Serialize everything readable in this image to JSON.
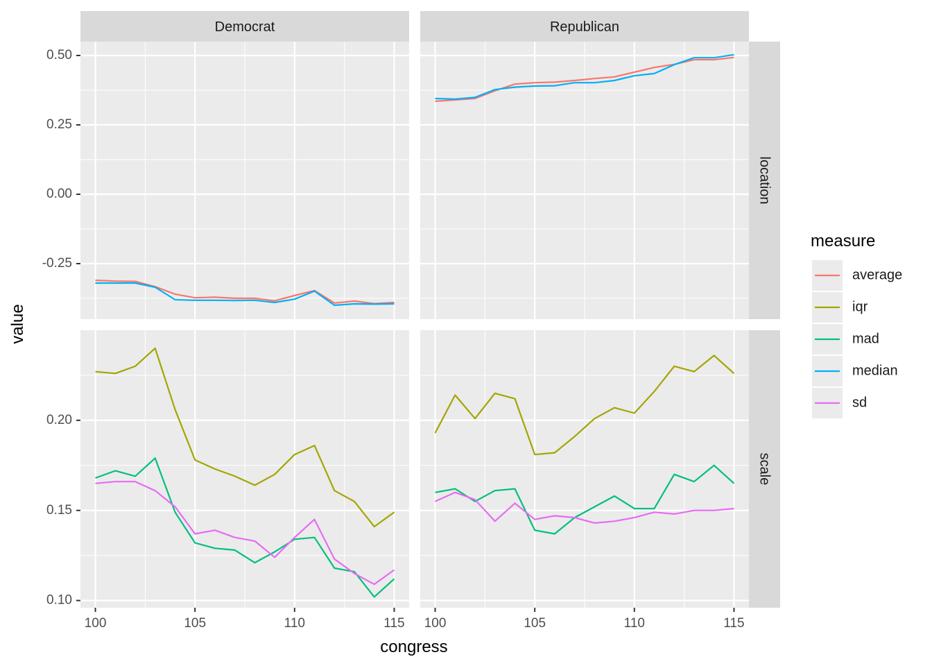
{
  "chart_data": {
    "type": "line",
    "facets": {
      "columns": [
        "Democrat",
        "Republican"
      ],
      "rows": [
        "location",
        "scale"
      ]
    },
    "xlabel": "congress",
    "ylabel": "value",
    "x": [
      100,
      101,
      102,
      103,
      104,
      105,
      106,
      107,
      108,
      109,
      110,
      111,
      112,
      113,
      114,
      115
    ],
    "x_ticks": [
      "100",
      "105",
      "110",
      "115"
    ],
    "xlim": [
      99.25,
      115.75
    ],
    "y_scales": {
      "location": {
        "ylim": [
          -0.45,
          0.55
        ],
        "ticks": [
          0.5,
          0.25,
          0.0,
          -0.25
        ],
        "tick_labels": [
          "0.50",
          "0.25",
          "0.00",
          "-0.25"
        ]
      },
      "scale": {
        "ylim": [
          0.096,
          0.25
        ],
        "ticks": [
          0.2,
          0.15,
          0.1
        ],
        "tick_labels": [
          "0.20",
          "0.15",
          "0.10"
        ]
      }
    },
    "legend": {
      "title": "measure",
      "position": "right",
      "entries": [
        {
          "name": "average",
          "color": "#F8766D"
        },
        {
          "name": "iqr",
          "color": "#A3A500"
        },
        {
          "name": "mad",
          "color": "#00BF7D"
        },
        {
          "name": "median",
          "color": "#00B0F6"
        },
        {
          "name": "sd",
          "color": "#E76BF3"
        }
      ]
    },
    "grid": true,
    "panels": [
      {
        "party": "Democrat",
        "row": "location",
        "series": [
          {
            "name": "average",
            "values": [
              -0.31,
              -0.313,
              -0.314,
              -0.333,
              -0.36,
              -0.373,
              -0.371,
              -0.375,
              -0.375,
              -0.384,
              -0.365,
              -0.347,
              -0.392,
              -0.385,
              -0.394,
              -0.39
            ]
          },
          {
            "name": "median",
            "values": [
              -0.32,
              -0.32,
              -0.32,
              -0.335,
              -0.38,
              -0.382,
              -0.382,
              -0.383,
              -0.382,
              -0.39,
              -0.378,
              -0.349,
              -0.4,
              -0.395,
              -0.396,
              -0.395
            ]
          }
        ]
      },
      {
        "party": "Republican",
        "row": "location",
        "series": [
          {
            "name": "average",
            "values": [
              0.335,
              0.34,
              0.345,
              0.373,
              0.397,
              0.402,
              0.404,
              0.41,
              0.417,
              0.423,
              0.44,
              0.457,
              0.468,
              0.485,
              0.485,
              0.493
            ]
          },
          {
            "name": "median",
            "values": [
              0.345,
              0.343,
              0.349,
              0.377,
              0.386,
              0.39,
              0.391,
              0.402,
              0.402,
              0.41,
              0.427,
              0.435,
              0.467,
              0.492,
              0.492,
              0.503
            ]
          }
        ]
      },
      {
        "party": "Democrat",
        "row": "scale",
        "series": [
          {
            "name": "iqr",
            "values": [
              0.227,
              0.226,
              0.23,
              0.24,
              0.206,
              0.178,
              0.173,
              0.169,
              0.164,
              0.17,
              0.181,
              0.186,
              0.161,
              0.155,
              0.141,
              0.149
            ]
          },
          {
            "name": "mad",
            "values": [
              0.168,
              0.172,
              0.169,
              0.179,
              0.149,
              0.132,
              0.129,
              0.128,
              0.121,
              0.127,
              0.134,
              0.135,
              0.118,
              0.116,
              0.102,
              0.112
            ]
          },
          {
            "name": "sd",
            "values": [
              0.165,
              0.166,
              0.166,
              0.161,
              0.152,
              0.137,
              0.139,
              0.135,
              0.133,
              0.124,
              0.135,
              0.145,
              0.123,
              0.115,
              0.109,
              0.117
            ]
          }
        ]
      },
      {
        "party": "Republican",
        "row": "scale",
        "series": [
          {
            "name": "iqr",
            "values": [
              0.193,
              0.214,
              0.201,
              0.215,
              0.212,
              0.181,
              0.182,
              0.191,
              0.201,
              0.207,
              0.204,
              0.216,
              0.23,
              0.227,
              0.236,
              0.226
            ]
          },
          {
            "name": "mad",
            "values": [
              0.16,
              0.162,
              0.155,
              0.161,
              0.162,
              0.139,
              0.137,
              0.146,
              0.152,
              0.158,
              0.151,
              0.151,
              0.17,
              0.166,
              0.175,
              0.165
            ]
          },
          {
            "name": "sd",
            "values": [
              0.155,
              0.16,
              0.156,
              0.144,
              0.154,
              0.145,
              0.147,
              0.146,
              0.143,
              0.144,
              0.146,
              0.149,
              0.148,
              0.15,
              0.15,
              0.151
            ]
          }
        ]
      }
    ]
  }
}
